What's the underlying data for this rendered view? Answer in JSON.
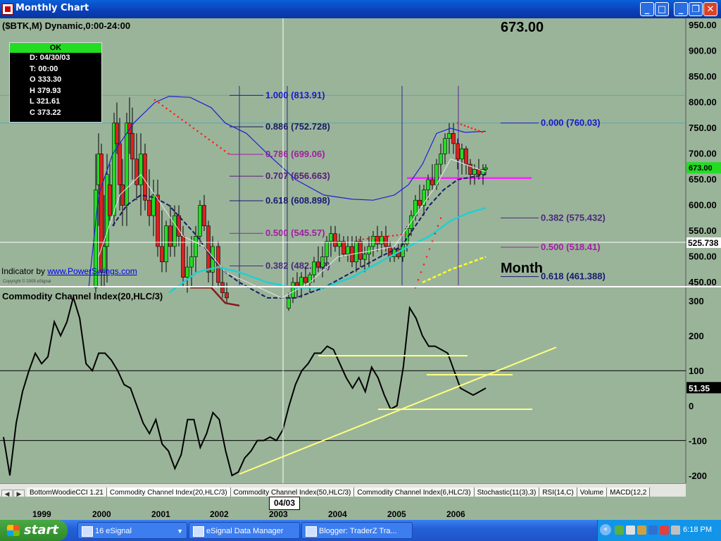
{
  "window": {
    "title": "Monthly Chart"
  },
  "chart_header": {
    "symbol": "($BTK,M) Dynamic,0:00-24:00",
    "big_price": "673.00",
    "period_label": "Month"
  },
  "cursor_box": {
    "status": "OK",
    "lines": [
      "D: 04/30/03",
      "T: 00:00",
      "O 333.30",
      "H 379.93",
      "L 321.61",
      "C 373.22"
    ],
    "copyright": "Copyright © 2005 eSignal"
  },
  "indicator_credit": {
    "prefix": "Indicator by ",
    "link": "www.PowerSwings.com"
  },
  "price_axis": {
    "ticks": [
      "950.00",
      "900.00",
      "850.00",
      "800.00",
      "750.00",
      "700.00",
      "650.00",
      "600.00",
      "550.00",
      "500.00",
      "450.00"
    ],
    "current_price": "673.00",
    "crosshair_price": "525.738"
  },
  "fib_left": [
    {
      "label": "1.000 (813.91)",
      "color": "#1818c8"
    },
    {
      "label": "0.886 (752.728)",
      "color": "#1a1a60"
    },
    {
      "label": "0.786 (699.06)",
      "color": "#a020a0"
    },
    {
      "label": "0.707 (656.663)",
      "color": "#5a1a7a"
    },
    {
      "label": "0.618 (608.898)",
      "color": "#1a1a70"
    },
    {
      "label": "0.500 (545.57)",
      "color": "#a020a0"
    },
    {
      "label": "0.382 (482.242)",
      "color": "#4a2a7a"
    }
  ],
  "fib_right": [
    {
      "label": "0.000 (760.03)",
      "color": "#1818c8"
    },
    {
      "label": "0.382 (575.432)",
      "color": "#4a2a7a"
    },
    {
      "label": "0.500 (518.41)",
      "color": "#a020a0"
    },
    {
      "label": "0.618 (461.388)",
      "color": "#1a1a70"
    }
  ],
  "cci_panel": {
    "title": "Commodity Channel Index(20,HLC/3)",
    "ticks": [
      "300",
      "200",
      "100",
      "0",
      "-100",
      "-200"
    ],
    "current_value": "51.35"
  },
  "indicator_tabs": [
    "BottomWoodieCCI 1.21",
    "Commodity Channel Index(20,HLC/3)",
    "Commodity Channel Index(50,HLC/3)",
    "Commodity Channel Index(6,HLC/3)",
    "Stochastic(11(3),3)",
    "RSI(14,C)",
    "Volume",
    "MACD(12,2"
  ],
  "active_tab": 1,
  "year_axis": [
    "1999",
    "2000",
    "2001",
    "2002",
    "2003",
    "2004",
    "2005",
    "2006"
  ],
  "date_marker": "04/03",
  "taskbar": {
    "start": "start",
    "items": [
      "16 eSignal",
      "eSignal Data Manager",
      "Blogger: TraderZ Tra..."
    ],
    "clock": "6:18 PM"
  },
  "colors": {
    "chart_bg": "#9ab49a",
    "up_candle": "#22dd22",
    "down_candle": "#dd2020",
    "fib_magenta": "#ff20ff",
    "trendline": "#ffff80"
  },
  "chart_data": [
    {
      "type": "candlestick",
      "title": "($BTK,M) Dynamic,0:00-24:00",
      "x_range": [
        "1999",
        "2006"
      ],
      "ylim": [
        430,
        960
      ],
      "last_close": 673.0,
      "fibonacci_left": {
        "1.000": 813.91,
        "0.886": 752.728,
        "0.786": 699.06,
        "0.707": 656.663,
        "0.618": 608.898,
        "0.500": 545.57,
        "0.382": 482.242
      },
      "fibonacci_right": {
        "0.000": 760.03,
        "0.382": 575.432,
        "0.500": 518.41,
        "0.618": 461.388
      },
      "horizontal_line": 653
    },
    {
      "type": "line",
      "title": "Commodity Channel Index(20,HLC/3)",
      "ylim": [
        -230,
        330
      ],
      "x_range": [
        "1999",
        "2006"
      ],
      "current": 51.35,
      "values": [
        -90,
        -200,
        -50,
        40,
        100,
        150,
        120,
        140,
        240,
        200,
        240,
        310,
        250,
        120,
        100,
        150,
        150,
        130,
        100,
        60,
        50,
        0,
        -50,
        -80,
        -40,
        -110,
        -130,
        -180,
        -140,
        -40,
        -40,
        -120,
        -80,
        -20,
        -40,
        -130,
        -200,
        -190,
        -150,
        -130,
        -100,
        -100,
        -90,
        -100,
        -70,
        0,
        60,
        100,
        120,
        150,
        150,
        170,
        160,
        120,
        80,
        50,
        80,
        40,
        110,
        80,
        30,
        -10,
        0,
        110,
        280,
        250,
        200,
        170,
        170,
        160,
        150,
        100,
        50,
        40,
        30,
        40,
        50
      ]
    }
  ]
}
